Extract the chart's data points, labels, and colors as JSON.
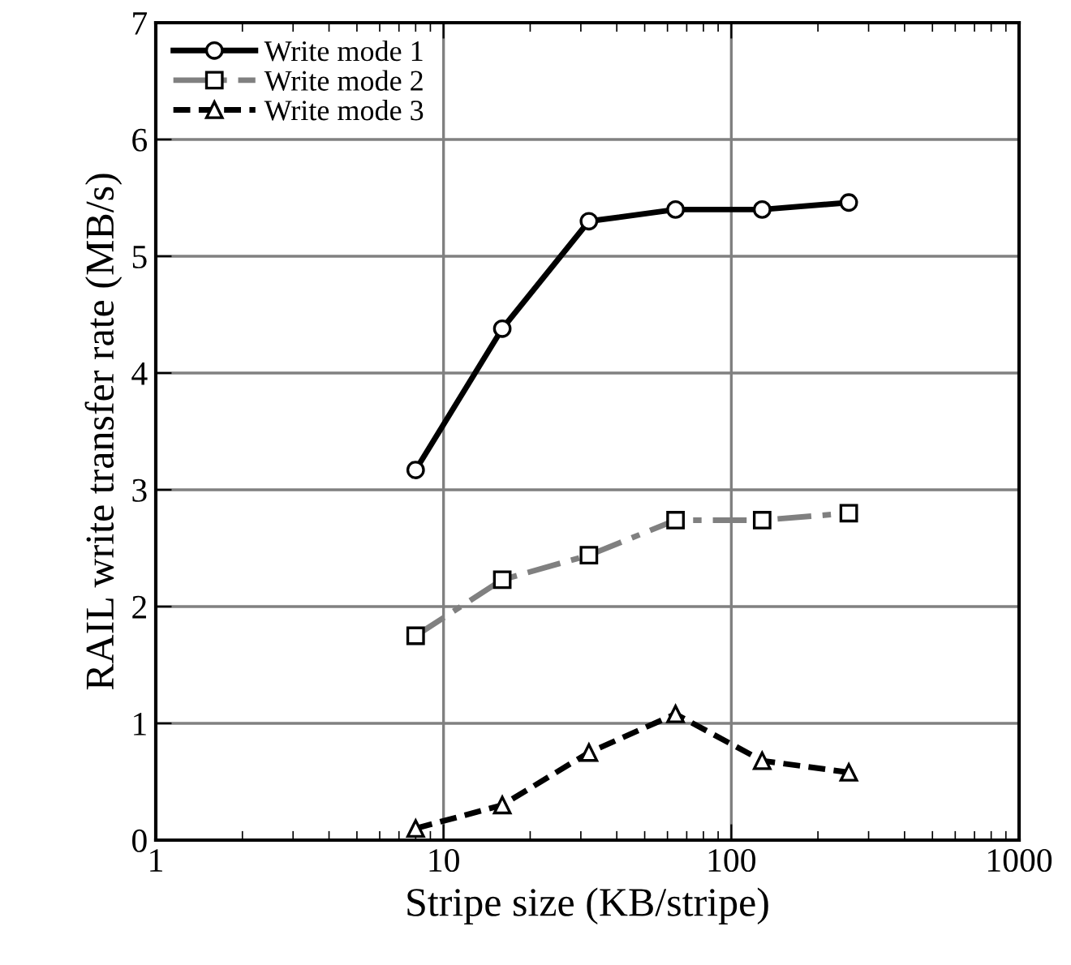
{
  "chart_data": {
    "type": "line",
    "xlabel": "Stripe size (KB/stripe)",
    "ylabel": "RAIL write transfer rate (MB/s)",
    "x": [
      8,
      16,
      32,
      64,
      128,
      256
    ],
    "series": [
      {
        "name": "Write mode 1",
        "color": "#000000",
        "marker": "circle",
        "line_style": "solid",
        "values": [
          3.17,
          4.38,
          5.3,
          5.4,
          5.4,
          5.46
        ]
      },
      {
        "name": "Write mode 2",
        "color": "#808080",
        "marker": "square",
        "line_style": "dashdot",
        "values": [
          1.75,
          2.23,
          2.44,
          2.74,
          2.74,
          2.8
        ]
      },
      {
        "name": "Write mode 3",
        "color": "#000000",
        "marker": "triangle",
        "line_style": "dashed",
        "values": [
          0.1,
          0.3,
          0.75,
          1.08,
          0.68,
          0.58
        ]
      }
    ],
    "log": "x",
    "xlim": [
      1,
      1000
    ],
    "xticks": [
      1,
      10,
      100,
      1000
    ],
    "ylim": [
      0,
      7
    ],
    "yticks": [
      0,
      1,
      2,
      3,
      4,
      5,
      6,
      7
    ],
    "grid": true,
    "legend": "top left"
  }
}
